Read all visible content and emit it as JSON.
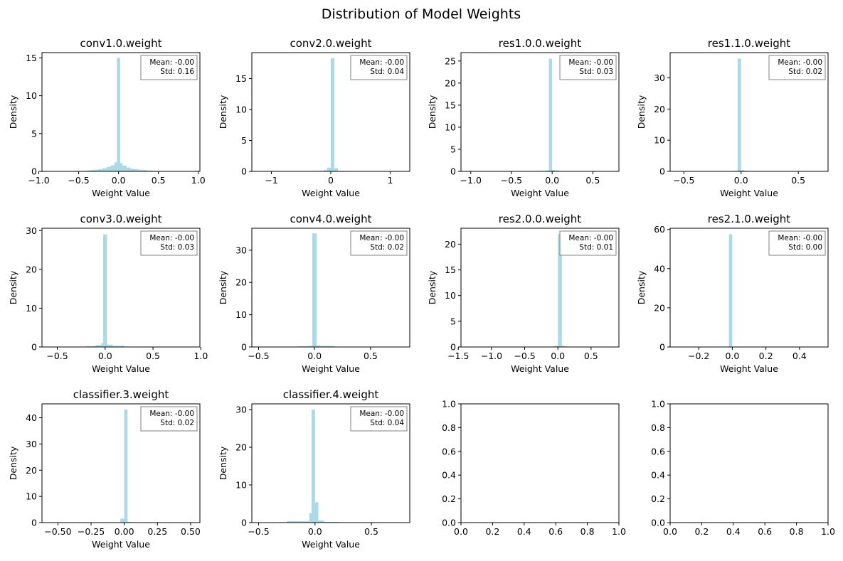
{
  "figure": {
    "title": "Distribution of Model Weights",
    "bar_color": "#add8e6",
    "stat_mean_prefix": "Mean: ",
    "stat_std_prefix": "Std: "
  },
  "chart_data": [
    {
      "type": "bar",
      "title": "conv1.0.weight",
      "xlabel": "Weight Value",
      "ylabel": "Density",
      "xlim": [
        -0.96,
        1.02
      ],
      "ylim": [
        0,
        15.7
      ],
      "xticks": [
        -1.0,
        -0.5,
        0.0,
        0.5,
        1.0
      ],
      "xtick_labels": [
        "−1.0",
        "−0.5",
        "0.0",
        "0.5",
        "1.0"
      ],
      "yticks": [
        0,
        5,
        10,
        15
      ],
      "ytick_labels": [
        "0",
        "5",
        "10",
        "15"
      ],
      "mean": "-0.00",
      "std": "0.16",
      "bins": [
        {
          "x0": -0.9,
          "x1": -0.85,
          "h": 0.02
        },
        {
          "x0": -0.5,
          "x1": -0.45,
          "h": 0.05
        },
        {
          "x0": -0.45,
          "x1": -0.4,
          "h": 0.08
        },
        {
          "x0": -0.4,
          "x1": -0.35,
          "h": 0.12
        },
        {
          "x0": -0.35,
          "x1": -0.3,
          "h": 0.18
        },
        {
          "x0": -0.3,
          "x1": -0.25,
          "h": 0.22
        },
        {
          "x0": -0.25,
          "x1": -0.2,
          "h": 0.3
        },
        {
          "x0": -0.2,
          "x1": -0.15,
          "h": 0.42
        },
        {
          "x0": -0.15,
          "x1": -0.1,
          "h": 0.6
        },
        {
          "x0": -0.1,
          "x1": -0.05,
          "h": 0.8
        },
        {
          "x0": -0.05,
          "x1": -0.02,
          "h": 1.2
        },
        {
          "x0": -0.02,
          "x1": 0.02,
          "h": 15.0
        },
        {
          "x0": 0.02,
          "x1": 0.05,
          "h": 1.1
        },
        {
          "x0": 0.05,
          "x1": 0.1,
          "h": 0.75
        },
        {
          "x0": 0.1,
          "x1": 0.15,
          "h": 0.5
        },
        {
          "x0": 0.15,
          "x1": 0.2,
          "h": 0.35
        },
        {
          "x0": 0.2,
          "x1": 0.25,
          "h": 0.3
        },
        {
          "x0": 0.25,
          "x1": 0.3,
          "h": 0.22
        },
        {
          "x0": 0.3,
          "x1": 0.35,
          "h": 0.18
        },
        {
          "x0": 0.35,
          "x1": 0.4,
          "h": 0.12
        },
        {
          "x0": 0.4,
          "x1": 0.45,
          "h": 0.08
        },
        {
          "x0": 0.45,
          "x1": 0.5,
          "h": 0.05
        },
        {
          "x0": 0.5,
          "x1": 0.55,
          "h": 0.03
        }
      ]
    },
    {
      "type": "bar",
      "title": "conv2.0.weight",
      "xlabel": "Weight Value",
      "ylabel": "Density",
      "xlim": [
        -1.33,
        1.33
      ],
      "ylim": [
        0,
        19.2
      ],
      "xticks": [
        -1,
        0,
        1
      ],
      "xtick_labels": [
        "−1",
        "0",
        "1"
      ],
      "yticks": [
        0,
        5,
        10,
        15
      ],
      "ytick_labels": [
        "0",
        "5",
        "10",
        "15"
      ],
      "mean": "-0.00",
      "std": "0.04",
      "bins": [
        {
          "x0": -0.12,
          "x1": -0.06,
          "h": 0.2
        },
        {
          "x0": -0.06,
          "x1": 0.0,
          "h": 0.6
        },
        {
          "x0": 0.0,
          "x1": 0.06,
          "h": 18.3
        },
        {
          "x0": 0.06,
          "x1": 0.12,
          "h": 0.5
        }
      ]
    },
    {
      "type": "bar",
      "title": "res1.0.0.weight",
      "xlabel": "Weight Value",
      "ylabel": "Density",
      "xlim": [
        -1.12,
        0.82
      ],
      "ylim": [
        0,
        26.9
      ],
      "xticks": [
        -1.0,
        -0.5,
        0.0,
        0.5
      ],
      "xtick_labels": [
        "−1.0",
        "−0.5",
        "0.0",
        "0.5"
      ],
      "yticks": [
        0,
        5,
        10,
        15,
        20,
        25
      ],
      "ytick_labels": [
        "0",
        "5",
        "10",
        "15",
        "20",
        "25"
      ],
      "mean": "-0.00",
      "std": "0.03",
      "bins": [
        {
          "x0": -0.08,
          "x1": -0.04,
          "h": 0.2
        },
        {
          "x0": -0.04,
          "x1": 0.0,
          "h": 25.5
        },
        {
          "x0": 0.0,
          "x1": 0.04,
          "h": 0.3
        },
        {
          "x0": 0.04,
          "x1": 0.08,
          "h": 0.2
        }
      ]
    },
    {
      "type": "bar",
      "title": "res1.1.0.weight",
      "xlabel": "Weight Value",
      "ylabel": "Density",
      "xlim": [
        -0.62,
        0.76
      ],
      "ylim": [
        0,
        38.1
      ],
      "xticks": [
        -0.5,
        0.0,
        0.5
      ],
      "xtick_labels": [
        "−0.5",
        "0.0",
        "0.5"
      ],
      "yticks": [
        0,
        10,
        20,
        30
      ],
      "ytick_labels": [
        "0",
        "10",
        "20",
        "30"
      ],
      "mean": "-0.00",
      "std": "0.02",
      "bins": [
        {
          "x0": -0.06,
          "x1": -0.03,
          "h": 0.2
        },
        {
          "x0": -0.03,
          "x1": 0.0,
          "h": 36.2
        },
        {
          "x0": 0.0,
          "x1": 0.03,
          "h": 0.4
        },
        {
          "x0": 0.03,
          "x1": 0.06,
          "h": 0.2
        }
      ]
    },
    {
      "type": "bar",
      "title": "conv3.0.weight",
      "xlabel": "Weight Value",
      "ylabel": "Density",
      "xlim": [
        -0.66,
        0.99
      ],
      "ylim": [
        0,
        30.6
      ],
      "xticks": [
        -0.5,
        0.0,
        0.5,
        1.0
      ],
      "xtick_labels": [
        "−0.5",
        "0.0",
        "0.5",
        "1.0"
      ],
      "yticks": [
        0,
        10,
        20,
        30
      ],
      "ytick_labels": [
        "0",
        "10",
        "20",
        "30"
      ],
      "mean": "-0.00",
      "std": "0.03",
      "bins": [
        {
          "x0": -0.2,
          "x1": -0.1,
          "h": 0.2
        },
        {
          "x0": -0.1,
          "x1": -0.04,
          "h": 0.5
        },
        {
          "x0": -0.04,
          "x1": -0.02,
          "h": 1.0
        },
        {
          "x0": -0.02,
          "x1": 0.02,
          "h": 29.0
        },
        {
          "x0": 0.02,
          "x1": 0.08,
          "h": 0.6
        },
        {
          "x0": 0.08,
          "x1": 0.2,
          "h": 0.3
        }
      ]
    },
    {
      "type": "bar",
      "title": "conv4.0.weight",
      "xlabel": "Weight Value",
      "ylabel": "Density",
      "xlim": [
        -0.56,
        0.85
      ],
      "ylim": [
        0,
        36.8
      ],
      "xticks": [
        -0.5,
        0.0,
        0.5
      ],
      "xtick_labels": [
        "−0.5",
        "0.0",
        "0.5"
      ],
      "yticks": [
        0,
        10,
        20,
        30
      ],
      "ytick_labels": [
        "0",
        "10",
        "20",
        "30"
      ],
      "mean": "-0.00",
      "std": "0.02",
      "bins": [
        {
          "x0": -0.15,
          "x1": -0.05,
          "h": 0.2
        },
        {
          "x0": -0.05,
          "x1": -0.02,
          "h": 0.4
        },
        {
          "x0": -0.02,
          "x1": 0.02,
          "h": 35.2
        },
        {
          "x0": 0.02,
          "x1": 0.05,
          "h": 0.5
        },
        {
          "x0": 0.05,
          "x1": 0.18,
          "h": 0.3
        }
      ]
    },
    {
      "type": "bar",
      "title": "res2.0.0.weight",
      "xlabel": "Weight Value",
      "ylabel": "Density",
      "xlim": [
        -1.46,
        0.92
      ],
      "ylim": [
        0,
        23.1
      ],
      "xticks": [
        -1.5,
        -1.0,
        -0.5,
        0.0,
        0.5
      ],
      "xtick_labels": [
        "−1.5",
        "−1.0",
        "−0.5",
        "0.0",
        "0.5"
      ],
      "yticks": [
        0,
        5,
        10,
        15,
        20
      ],
      "ytick_labels": [
        "0",
        "5",
        "10",
        "15",
        "20"
      ],
      "mean": "-0.00",
      "std": "0.01",
      "bins": [
        {
          "x0": -0.06,
          "x1": 0.0,
          "h": 0.2
        },
        {
          "x0": 0.0,
          "x1": 0.06,
          "h": 22.0
        },
        {
          "x0": 0.06,
          "x1": 0.12,
          "h": 0.2
        }
      ]
    },
    {
      "type": "bar",
      "title": "res2.1.0.weight",
      "xlabel": "Weight Value",
      "ylabel": "Density",
      "xlim": [
        -0.37,
        0.57
      ],
      "ylim": [
        0,
        60.6
      ],
      "xticks": [
        -0.2,
        0.0,
        0.2,
        0.4
      ],
      "xtick_labels": [
        "−0.2",
        "0.0",
        "0.2",
        "0.4"
      ],
      "yticks": [
        0,
        20,
        40,
        60
      ],
      "ytick_labels": [
        "0",
        "20",
        "40",
        "60"
      ],
      "mean": "-0.00",
      "std": "0.00",
      "bins": [
        {
          "x0": -0.02,
          "x1": 0.0,
          "h": 57.5
        }
      ]
    },
    {
      "type": "bar",
      "title": "classifier.3.weight",
      "xlabel": "Weight Value",
      "ylabel": "Density",
      "xlim": [
        -0.62,
        0.57
      ],
      "ylim": [
        0,
        45.3
      ],
      "xticks": [
        -0.5,
        -0.25,
        0.0,
        0.25,
        0.5
      ],
      "xtick_labels": [
        "−0.50",
        "−0.25",
        "0.00",
        "0.25",
        "0.50"
      ],
      "yticks": [
        0,
        10,
        20,
        30,
        40
      ],
      "ytick_labels": [
        "0",
        "10",
        "20",
        "30",
        "40"
      ],
      "mean": "-0.00",
      "std": "0.02",
      "bins": [
        {
          "x0": -0.03,
          "x1": 0.0,
          "h": 1.5
        },
        {
          "x0": 0.0,
          "x1": 0.025,
          "h": 43.2
        },
        {
          "x0": 0.025,
          "x1": 0.05,
          "h": 0.3
        }
      ]
    },
    {
      "type": "bar",
      "title": "classifier.4.weight",
      "xlabel": "Weight Value",
      "ylabel": "Density",
      "xlim": [
        -0.56,
        0.84
      ],
      "ylim": [
        0,
        31.5
      ],
      "xticks": [
        -0.5,
        0.0,
        0.5
      ],
      "xtick_labels": [
        "−0.5",
        "0.0",
        "0.5"
      ],
      "yticks": [
        0,
        10,
        20,
        30
      ],
      "ytick_labels": [
        "0",
        "10",
        "20",
        "30"
      ],
      "mean": "-0.00",
      "std": "0.04",
      "bins": [
        {
          "x0": -0.25,
          "x1": -0.05,
          "h": 0.4
        },
        {
          "x0": -0.05,
          "x1": -0.03,
          "h": 2.5
        },
        {
          "x0": -0.03,
          "x1": 0.0,
          "h": 30.0
        },
        {
          "x0": 0.0,
          "x1": 0.03,
          "h": 5.4
        },
        {
          "x0": 0.03,
          "x1": 0.08,
          "h": 0.6
        },
        {
          "x0": 0.08,
          "x1": 0.2,
          "h": 0.2
        }
      ]
    },
    {
      "type": "bar",
      "title": "",
      "xlabel": "",
      "ylabel": "",
      "xlim": [
        0,
        1
      ],
      "ylim": [
        0,
        1
      ],
      "xticks": [
        0,
        0.2,
        0.4,
        0.6,
        0.8,
        1.0
      ],
      "xtick_labels": [
        "0.0",
        "0.2",
        "0.4",
        "0.6",
        "0.8",
        "1.0"
      ],
      "yticks": [
        0,
        0.2,
        0.4,
        0.6,
        0.8,
        1.0
      ],
      "ytick_labels": [
        "0.0",
        "0.2",
        "0.4",
        "0.6",
        "0.8",
        "1.0"
      ],
      "bins": []
    },
    {
      "type": "bar",
      "title": "",
      "xlabel": "",
      "ylabel": "",
      "xlim": [
        0,
        1
      ],
      "ylim": [
        0,
        1
      ],
      "xticks": [
        0,
        0.2,
        0.4,
        0.6,
        0.8,
        1.0
      ],
      "xtick_labels": [
        "0.0",
        "0.2",
        "0.4",
        "0.6",
        "0.8",
        "1.0"
      ],
      "yticks": [
        0,
        0.2,
        0.4,
        0.6,
        0.8,
        1.0
      ],
      "ytick_labels": [
        "0.0",
        "0.2",
        "0.4",
        "0.6",
        "0.8",
        "1.0"
      ],
      "bins": []
    }
  ]
}
